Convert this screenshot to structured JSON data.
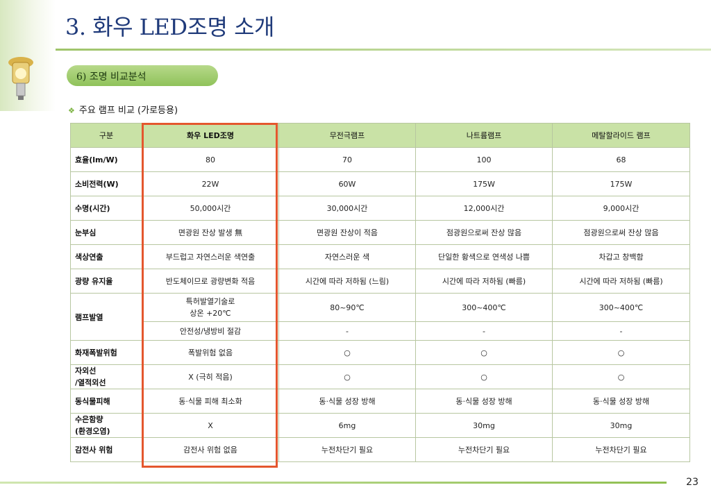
{
  "title": "3. 화우 LED조명 소개",
  "section_pill": "6) 조명 비교분석",
  "subheading": "주요 램프 비교 (가로등용)",
  "table": {
    "headers": [
      "구분",
      "화우  LED조명",
      "무전극램프",
      "나트륨램프",
      "메탈할라이드 램프"
    ],
    "rows": [
      {
        "label": "효율(lm/W)",
        "cells": [
          "80",
          "70",
          "100",
          "68"
        ]
      },
      {
        "label": "소비전력(W)",
        "cells": [
          "22W",
          "60W",
          "175W",
          "175W"
        ]
      },
      {
        "label": "수명(시간)",
        "cells": [
          "50,000시간",
          "30,000시간",
          "12,000시간",
          "9,000시간"
        ]
      },
      {
        "label": "눈부심",
        "cells": [
          "면광원 잔상 발생 無",
          "면광원 잔상이 적음",
          "점광원으로써 잔상 많음",
          "점광원으로써 잔상 많음"
        ]
      },
      {
        "label": "색상연출",
        "cells": [
          "부드럽고 자연스러운 색연출",
          "자연스러운 색",
          "단일한 황색으로 연색성 나쁨",
          "차갑고 창백함"
        ]
      },
      {
        "label": "광량 유지율",
        "cells": [
          "반도체이므로 광량변화 적음",
          "시간에 따라 저하됨 (느림)",
          "시간에 따라 저하됨 (빠름)",
          "시간에 따라 저하됨 (빠름)"
        ]
      }
    ],
    "lamp_heat": {
      "label": "램프발열",
      "line1": "특허발열기술로",
      "line2": "상온 +20℃",
      "cells": [
        "80~90℃",
        "300~400℃",
        "300~400℃"
      ],
      "sub_cells": [
        "안전성/냉방비 절감",
        "-",
        "-",
        "-"
      ]
    },
    "rows2": [
      {
        "label": "화재폭발위험",
        "cells": [
          "폭발위험 없음",
          "○",
          "○",
          "○"
        ]
      },
      {
        "label1": "자외선",
        "label2": "/열적외선",
        "cells": [
          "X (극히 적음)",
          "○",
          "○",
          "○"
        ]
      },
      {
        "label": "동식물피해",
        "cells": [
          "동·식물 피해 최소화",
          "동·식물 성장 방해",
          "동·식물 성장 방해",
          "동·식물 성장 방해"
        ]
      },
      {
        "label1": "수은함량",
        "label2": "(환경오염)",
        "cells": [
          "X",
          "6mg",
          "30mg",
          "30mg"
        ]
      },
      {
        "label": "감전사 위험",
        "cells": [
          "감전사 위험 없음",
          "누전차단기 필요",
          "누전차단기 필요",
          "누전차단기 필요"
        ]
      }
    ]
  },
  "page_number": "23",
  "colors": {
    "accent_green": "#8fc25a",
    "highlight_border": "#e4572e",
    "header_fill": "#c9e2a6",
    "title_blue": "#1f3a7a"
  },
  "icons": {
    "bullet": "diamond-bullet-icon",
    "lamp": "led-lamp-icon"
  }
}
